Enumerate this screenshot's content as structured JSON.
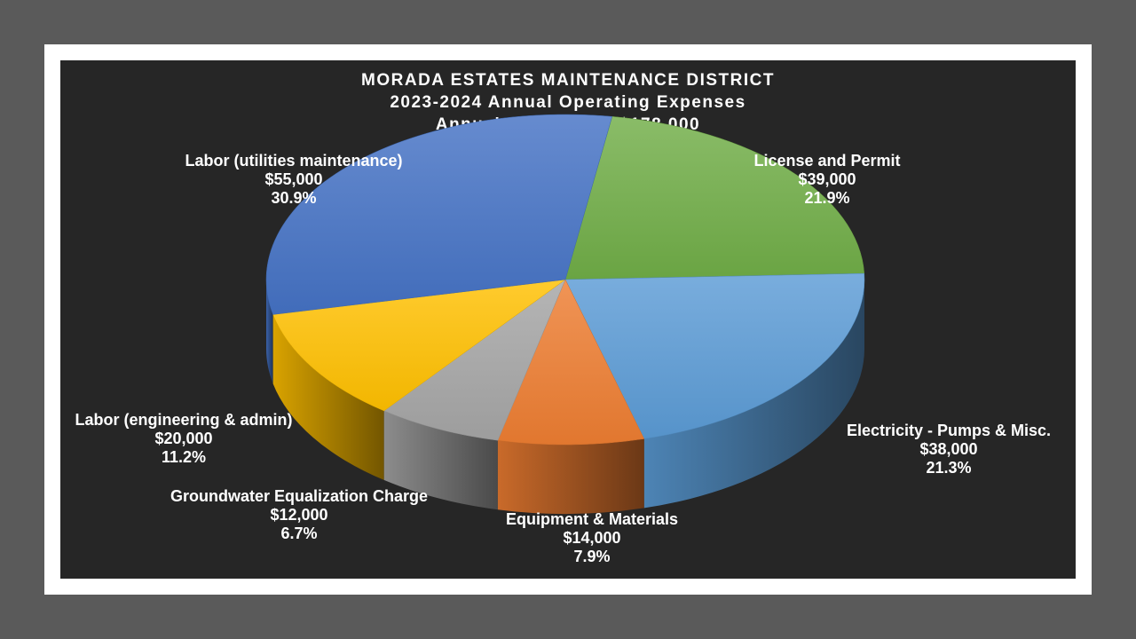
{
  "chart_data": {
    "type": "pie",
    "style": "3d",
    "title": "MORADA ESTATES MAINTENANCE DISTRICT",
    "subtitle": "2023-2024 Annual Operating Expenses",
    "subtitle2": "Annual Expenses = $178,000",
    "categories": [
      "License and Permit",
      "Electricity - Pumps & Misc.",
      "Equipment & Materials",
      "Groundwater Equalization Charge",
      "Labor (engineering & admin)",
      "Labor (utilities maintenance)"
    ],
    "values": [
      39000,
      38000,
      14000,
      12000,
      20000,
      55000
    ],
    "value_labels": [
      "$39,000",
      "$38,000",
      "$14,000",
      "$12,000",
      "$20,000",
      "$55,000"
    ],
    "percent_labels": [
      "21.9%",
      "21.3%",
      "7.9%",
      "6.7%",
      "11.2%",
      "30.9%"
    ],
    "colors": [
      "#70AD47",
      "#5B9BD5",
      "#ED7D31",
      "#A5A5A5",
      "#FFC000",
      "#4472C4"
    ],
    "background": "#262626"
  }
}
